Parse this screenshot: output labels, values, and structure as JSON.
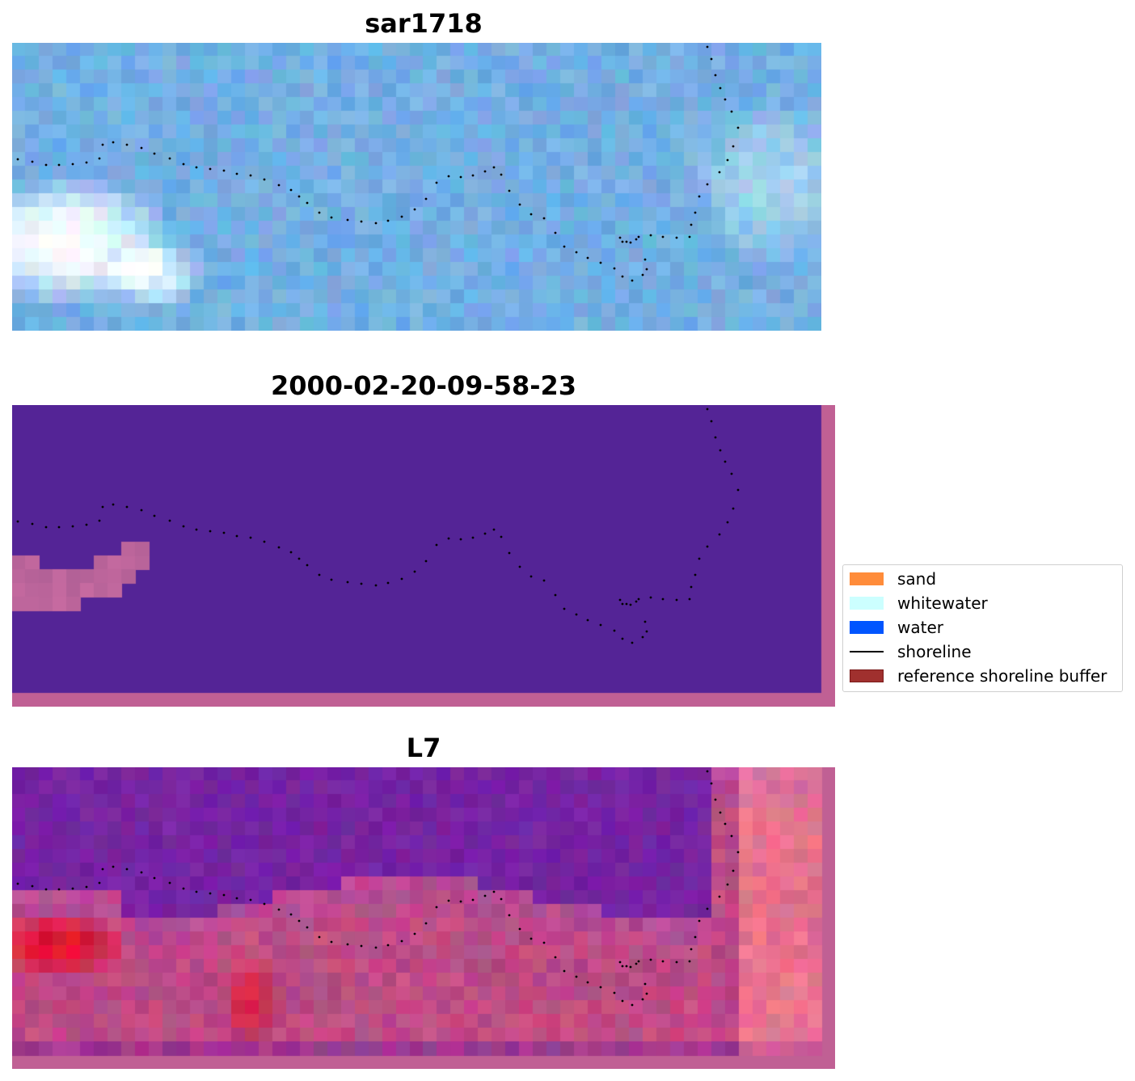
{
  "panels": [
    {
      "title": "sar1718",
      "kind": "rgb"
    },
    {
      "title": "2000-02-20-09-58-23",
      "kind": "classified"
    },
    {
      "title": "L7",
      "kind": "index"
    }
  ],
  "legend": [
    {
      "label": "sand",
      "color": "#ff8c3a",
      "type": "patch"
    },
    {
      "label": "whitewater",
      "color": "#ccffff",
      "type": "patch"
    },
    {
      "label": "water",
      "color": "#0055ff",
      "type": "patch"
    },
    {
      "label": "shoreline",
      "color": "#000000",
      "type": "line"
    },
    {
      "label": "reference shoreline buffer",
      "color": "#a0302e",
      "edge": "#7a1a1a",
      "type": "patch"
    }
  ],
  "colors": {
    "classified_water": "#542496",
    "classified_border": "#c06094",
    "index_border": "#c06094"
  }
}
